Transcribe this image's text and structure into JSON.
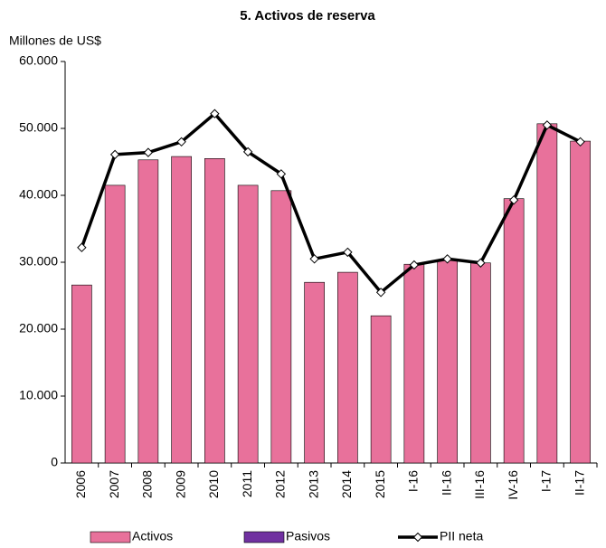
{
  "chart_data": {
    "type": "bar-line",
    "title": "5. Activos de reserva",
    "y_label": "Millones de US$",
    "categories": [
      "2006",
      "2007",
      "2008",
      "2009",
      "2010",
      "2011",
      "2012",
      "2013",
      "2014",
      "2015",
      "I-16",
      "II-16",
      "III-16",
      "IV-16",
      "I-17",
      "II-17"
    ],
    "series": [
      {
        "name": "Activos",
        "type": "bar",
        "color": "#e8719b",
        "values": [
          26600,
          41500,
          45300,
          45800,
          45500,
          41500,
          40700,
          27000,
          28500,
          22000,
          29700,
          30300,
          29900,
          39500,
          50700,
          48100
        ]
      },
      {
        "name": "Pasivos",
        "type": "bar",
        "color": "#7030a0",
        "values": [
          null,
          null,
          null,
          null,
          null,
          null,
          null,
          null,
          null,
          null,
          null,
          null,
          null,
          null,
          null,
          null
        ]
      },
      {
        "name": "PII neta",
        "type": "line",
        "color": "#000000",
        "values": [
          32200,
          46100,
          46400,
          48000,
          52200,
          46500,
          43200,
          30500,
          31500,
          25500,
          29600,
          30500,
          29900,
          39300,
          50500,
          48000
        ]
      }
    ],
    "ylim": [
      0,
      60000
    ],
    "yticks": [
      {
        "value": 0,
        "label": "0"
      },
      {
        "value": 10000,
        "label": "10.000"
      },
      {
        "value": 20000,
        "label": "20.000"
      },
      {
        "value": 30000,
        "label": "30.000"
      },
      {
        "value": 40000,
        "label": "40.000"
      },
      {
        "value": 50000,
        "label": "50.000"
      },
      {
        "value": 60000,
        "label": "60.000"
      }
    ]
  }
}
